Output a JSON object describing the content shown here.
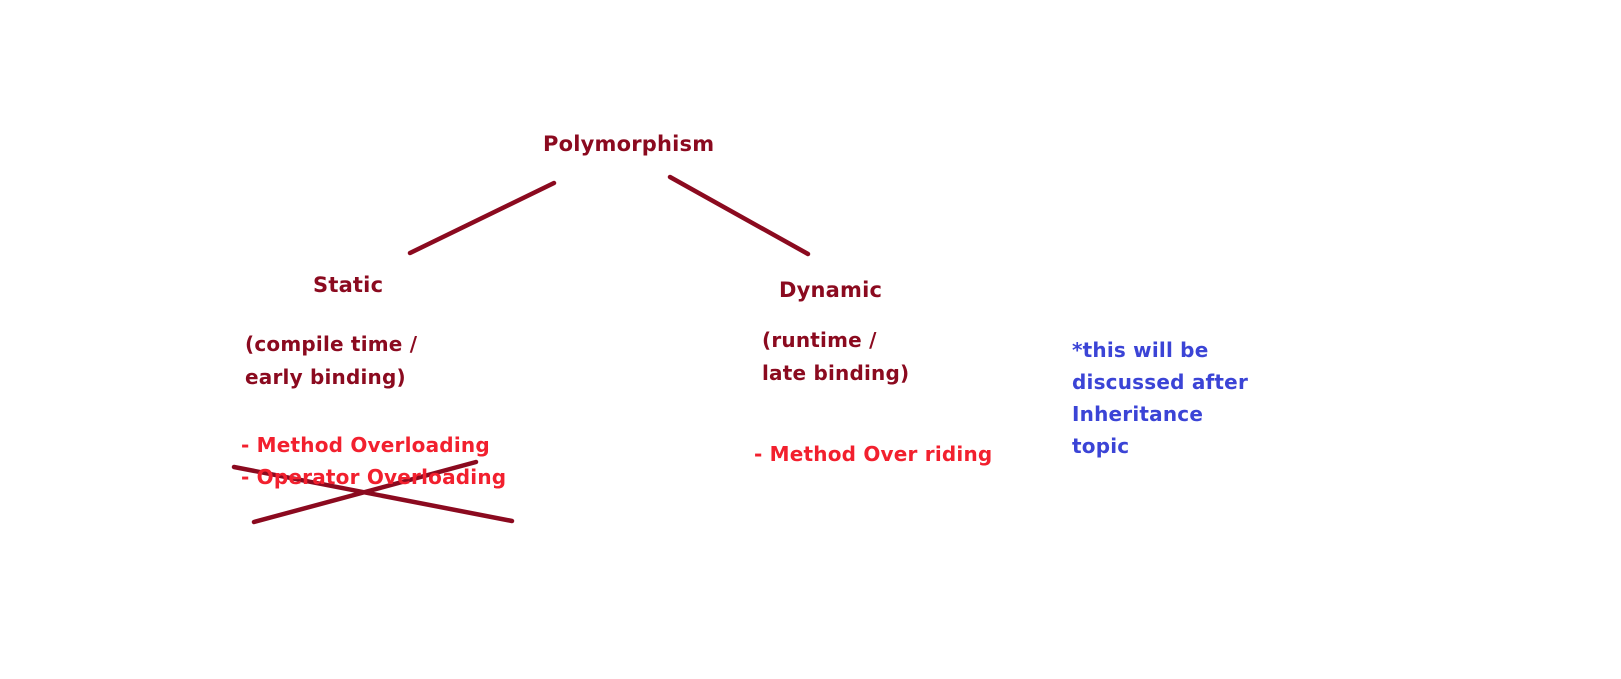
{
  "colors": {
    "heading": "#8b0a1f",
    "item": "#f2202e",
    "note": "#3b44d6",
    "connector": "#8b0a1f",
    "strike": "#8b0a1f"
  },
  "root": {
    "label": "Polymorphism"
  },
  "static": {
    "label": "Static",
    "description": [
      "(compile time /",
      "early binding)"
    ],
    "items": [
      {
        "text": "- Method Overloading",
        "struck": false
      },
      {
        "text": "- Operator Overloading",
        "struck": true
      }
    ]
  },
  "dynamic": {
    "label": "Dynamic",
    "description": [
      "(runtime /",
      "late binding)"
    ],
    "items": [
      {
        "text": "- Method Over riding",
        "struck": false
      }
    ]
  },
  "note": {
    "lines": [
      "*this will be",
      "discussed after",
      "Inheritance",
      "topic"
    ]
  }
}
